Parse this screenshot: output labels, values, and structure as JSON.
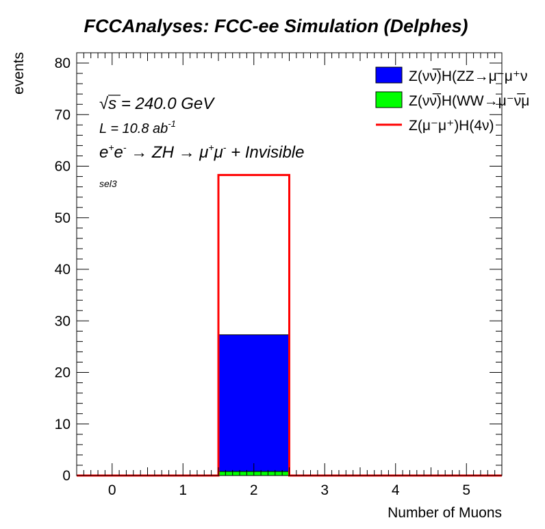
{
  "chart_data": {
    "type": "bar",
    "title": "FCCAnalyses: FCC-ee Simulation (Delphes)",
    "xlabel": "Number of Muons",
    "ylabel": "events",
    "xlim": [
      -0.5,
      5.5
    ],
    "ylim": [
      0,
      82
    ],
    "x_ticks": [
      "0",
      "1",
      "2",
      "3",
      "4",
      "5"
    ],
    "y_ticks": [
      "0",
      "10",
      "20",
      "30",
      "40",
      "50",
      "60",
      "70",
      "80"
    ],
    "bin_edges": [
      -0.5,
      0.5,
      1.5,
      2.5,
      3.5,
      4.5,
      5.5
    ],
    "stacked": [
      {
        "name": "Z(νν̅)H(WW→μ⁻ν̅μ",
        "color": "#00ff00",
        "values": [
          0,
          0,
          0.8,
          0,
          0,
          0
        ]
      },
      {
        "name": "Z(νν̅)H(ZZ→μ⁻μ⁺ν",
        "color": "#0000ff",
        "values": [
          0,
          0,
          26.5,
          0,
          0,
          0
        ]
      }
    ],
    "line_series": [
      {
        "name": "Z(μ⁻μ⁺)H(4ν)",
        "color": "#ff0000",
        "values": [
          0,
          0,
          58.3,
          0,
          0,
          0
        ]
      }
    ],
    "annotations": {
      "sqrt_symbol": "√",
      "sqrt_s": "s",
      "energy": " = 240.0 GeV",
      "lumi": "L = 10.8 ab",
      "lumi_exp": "-1",
      "process_e": "e",
      "process_eplus": "+",
      "process_mid": "e",
      "process_eminus": "-",
      "process_arrow1": " → ZH → μ",
      "process_muplus": "+",
      "process_mu": "μ",
      "process_muminus": "-",
      "process_end": " + Invisible",
      "selection": "sel3"
    },
    "legend_position": "top-right"
  }
}
